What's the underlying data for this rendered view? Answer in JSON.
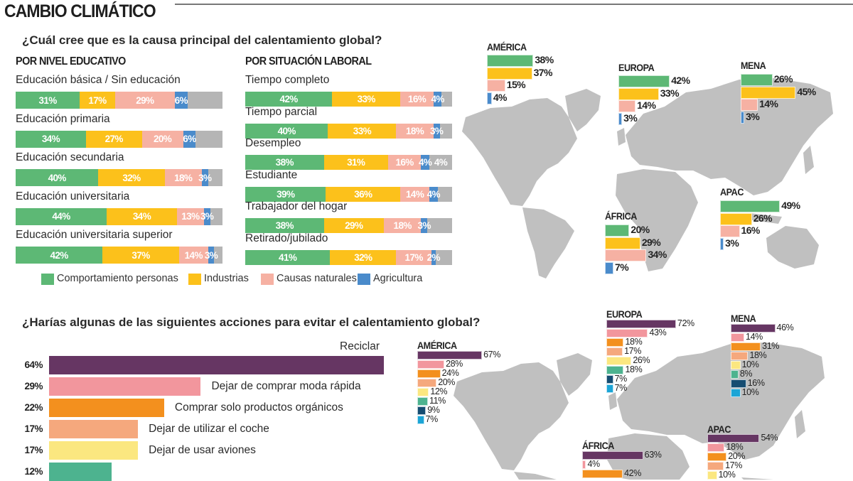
{
  "title": "CAMBIO CLIMÁTICO",
  "chart_data": [
    {
      "type": "bar",
      "stacked": true,
      "orientation": "horizontal",
      "title": "¿Cuál cree que es la causa principal del calentamiento global?",
      "subtitle": "POR NIVEL EDUCATIVO",
      "categories": [
        "Educación básica / Sin educación",
        "Educación primaria",
        "Educación secundaria",
        "Educación universitaria",
        "Educación universitaria superior"
      ],
      "series": [
        {
          "name": "Comportamiento personas",
          "color": "#5db875",
          "values": [
            31,
            34,
            40,
            44,
            42
          ]
        },
        {
          "name": "Industrias",
          "color": "#fcc11b",
          "values": [
            17,
            27,
            32,
            34,
            37
          ]
        },
        {
          "name": "Causas naturales",
          "color": "#f6b1a3",
          "values": [
            29,
            20,
            18,
            13,
            14
          ]
        },
        {
          "name": "Agricultura",
          "color": "#4a8bcb",
          "values": [
            6,
            6,
            3,
            3,
            3
          ]
        }
      ],
      "remainder_color": "#b5b5b5",
      "xlim": [
        0,
        100
      ]
    },
    {
      "type": "bar",
      "stacked": true,
      "orientation": "horizontal",
      "subtitle": "POR SITUACIÓN LABORAL",
      "categories": [
        "Tiempo completo",
        "Tiempo parcial",
        "Desempleo",
        "Estudiante",
        "Trabajador del hogar",
        "Retirado/jubilado"
      ],
      "series": [
        {
          "name": "Comportamiento personas",
          "color": "#5db875",
          "values": [
            42,
            40,
            38,
            39,
            38,
            41
          ]
        },
        {
          "name": "Industrias",
          "color": "#fcc11b",
          "values": [
            33,
            33,
            31,
            36,
            29,
            32
          ]
        },
        {
          "name": "Causas naturales",
          "color": "#f6b1a3",
          "values": [
            16,
            18,
            16,
            14,
            18,
            17
          ]
        },
        {
          "name": "Agricultura",
          "color": "#4a8bcb",
          "values": [
            4,
            3,
            4,
            4,
            3,
            2
          ]
        }
      ],
      "extra_labels": {
        "Desempleo": "4%"
      },
      "remainder_color": "#b5b5b5",
      "xlim": [
        0,
        100
      ]
    },
    {
      "type": "bar",
      "orientation": "horizontal",
      "grouped_by_region": true,
      "series_colors": [
        "#5db875",
        "#fcc11b",
        "#f6b1a3",
        "#4a8bcb"
      ],
      "regions": [
        {
          "name": "AMÉRICA",
          "values": [
            38,
            37,
            15,
            4
          ]
        },
        {
          "name": "EUROPA",
          "values": [
            42,
            33,
            14,
            3
          ]
        },
        {
          "name": "MENA",
          "values": [
            26,
            45,
            14,
            3
          ]
        },
        {
          "name": "ÁFRICA",
          "values": [
            20,
            29,
            34,
            7
          ]
        },
        {
          "name": "APAC",
          "values": [
            49,
            26,
            16,
            3
          ]
        }
      ]
    },
    {
      "type": "bar",
      "orientation": "horizontal",
      "title": "¿Harías algunas de las siguientes acciones  para evitar el calentamiento global?",
      "categories": [
        "Reciclar",
        "Dejar de comprar moda rápida",
        "Comprar solo productos orgánicos",
        "Dejar de utilizar el coche",
        "Dejar de usar aviones",
        ""
      ],
      "values": [
        64,
        29,
        22,
        17,
        17,
        12
      ],
      "colors": [
        "#663663",
        "#f2969d",
        "#f3901e",
        "#f5a87d",
        "#fbe780",
        "#4db38f"
      ]
    },
    {
      "type": "bar",
      "orientation": "horizontal",
      "grouped_by_region": true,
      "series_colors": [
        "#663663",
        "#f2969d",
        "#f3901e",
        "#f5a87d",
        "#fbe780",
        "#4db38f",
        "#164d72",
        "#1ca5d6"
      ],
      "regions": [
        {
          "name": "AMÉRICA",
          "values": [
            67,
            28,
            24,
            20,
            12,
            11,
            9,
            7
          ]
        },
        {
          "name": "EUROPA",
          "values": [
            72,
            43,
            18,
            17,
            26,
            18,
            7,
            7
          ]
        },
        {
          "name": "MENA",
          "values": [
            46,
            14,
            31,
            18,
            10,
            8,
            16,
            10
          ]
        },
        {
          "name": "ÁFRICA",
          "values": [
            63,
            4,
            42
          ]
        },
        {
          "name": "APAC",
          "values": [
            54,
            18,
            20,
            17,
            10
          ]
        }
      ]
    }
  ],
  "legend": [
    {
      "label": "Comportamiento personas",
      "color": "#5db875"
    },
    {
      "label": "Industrias",
      "color": "#fcc11b"
    },
    {
      "label": "Causas naturales",
      "color": "#f6b1a3"
    },
    {
      "label": "Agricultura",
      "color": "#4a8bcb"
    }
  ],
  "map_color": "#c0c0c0"
}
